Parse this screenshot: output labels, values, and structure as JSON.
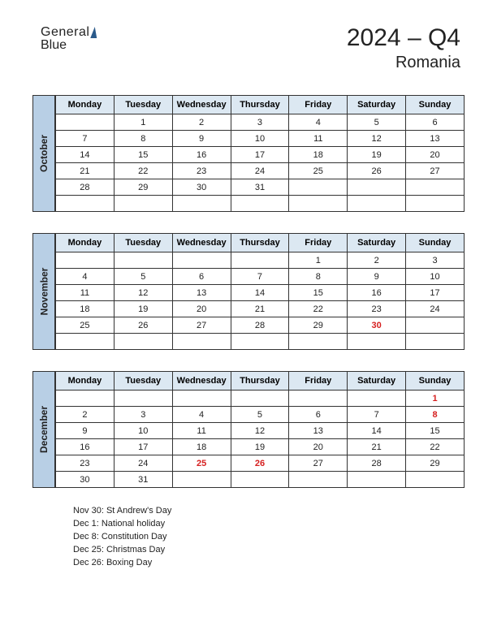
{
  "logo": {
    "line1": "General",
    "line2": "Blue"
  },
  "header": {
    "title": "2024 – Q4",
    "subtitle": "Romania"
  },
  "day_headers": [
    "Monday",
    "Tuesday",
    "Wednesday",
    "Thursday",
    "Friday",
    "Saturday",
    "Sunday"
  ],
  "colors": {
    "month_bg": "#b8cfe5",
    "header_bg": "#dce8f2",
    "border": "#333333",
    "holiday": "#d62020",
    "text": "#222222",
    "page_bg": "#ffffff"
  },
  "months": [
    {
      "name": "October",
      "weeks": [
        [
          "",
          "1",
          "2",
          "3",
          "4",
          "5",
          "6"
        ],
        [
          "7",
          "8",
          "9",
          "10",
          "11",
          "12",
          "13"
        ],
        [
          "14",
          "15",
          "16",
          "17",
          "18",
          "19",
          "20"
        ],
        [
          "21",
          "22",
          "23",
          "24",
          "25",
          "26",
          "27"
        ],
        [
          "28",
          "29",
          "30",
          "31",
          "",
          "",
          ""
        ],
        [
          "",
          "",
          "",
          "",
          "",
          "",
          ""
        ]
      ],
      "holidays": []
    },
    {
      "name": "November",
      "weeks": [
        [
          "",
          "",
          "",
          "",
          "1",
          "2",
          "3"
        ],
        [
          "4",
          "5",
          "6",
          "7",
          "8",
          "9",
          "10"
        ],
        [
          "11",
          "12",
          "13",
          "14",
          "15",
          "16",
          "17"
        ],
        [
          "18",
          "19",
          "20",
          "21",
          "22",
          "23",
          "24"
        ],
        [
          "25",
          "26",
          "27",
          "28",
          "29",
          "30",
          ""
        ],
        [
          "",
          "",
          "",
          "",
          "",
          "",
          ""
        ]
      ],
      "holidays": [
        "30"
      ]
    },
    {
      "name": "December",
      "weeks": [
        [
          "",
          "",
          "",
          "",
          "",
          "",
          "1"
        ],
        [
          "2",
          "3",
          "4",
          "5",
          "6",
          "7",
          "8"
        ],
        [
          "9",
          "10",
          "11",
          "12",
          "13",
          "14",
          "15"
        ],
        [
          "16",
          "17",
          "18",
          "19",
          "20",
          "21",
          "22"
        ],
        [
          "23",
          "24",
          "25",
          "26",
          "27",
          "28",
          "29"
        ],
        [
          "30",
          "31",
          "",
          "",
          "",
          "",
          ""
        ]
      ],
      "holidays": [
        "1",
        "8",
        "25",
        "26"
      ]
    }
  ],
  "holiday_list": [
    "Nov 30: St Andrew's Day",
    "Dec 1: National holiday",
    "Dec 8: Constitution Day",
    "Dec 25: Christmas Day",
    "Dec 26: Boxing Day"
  ]
}
